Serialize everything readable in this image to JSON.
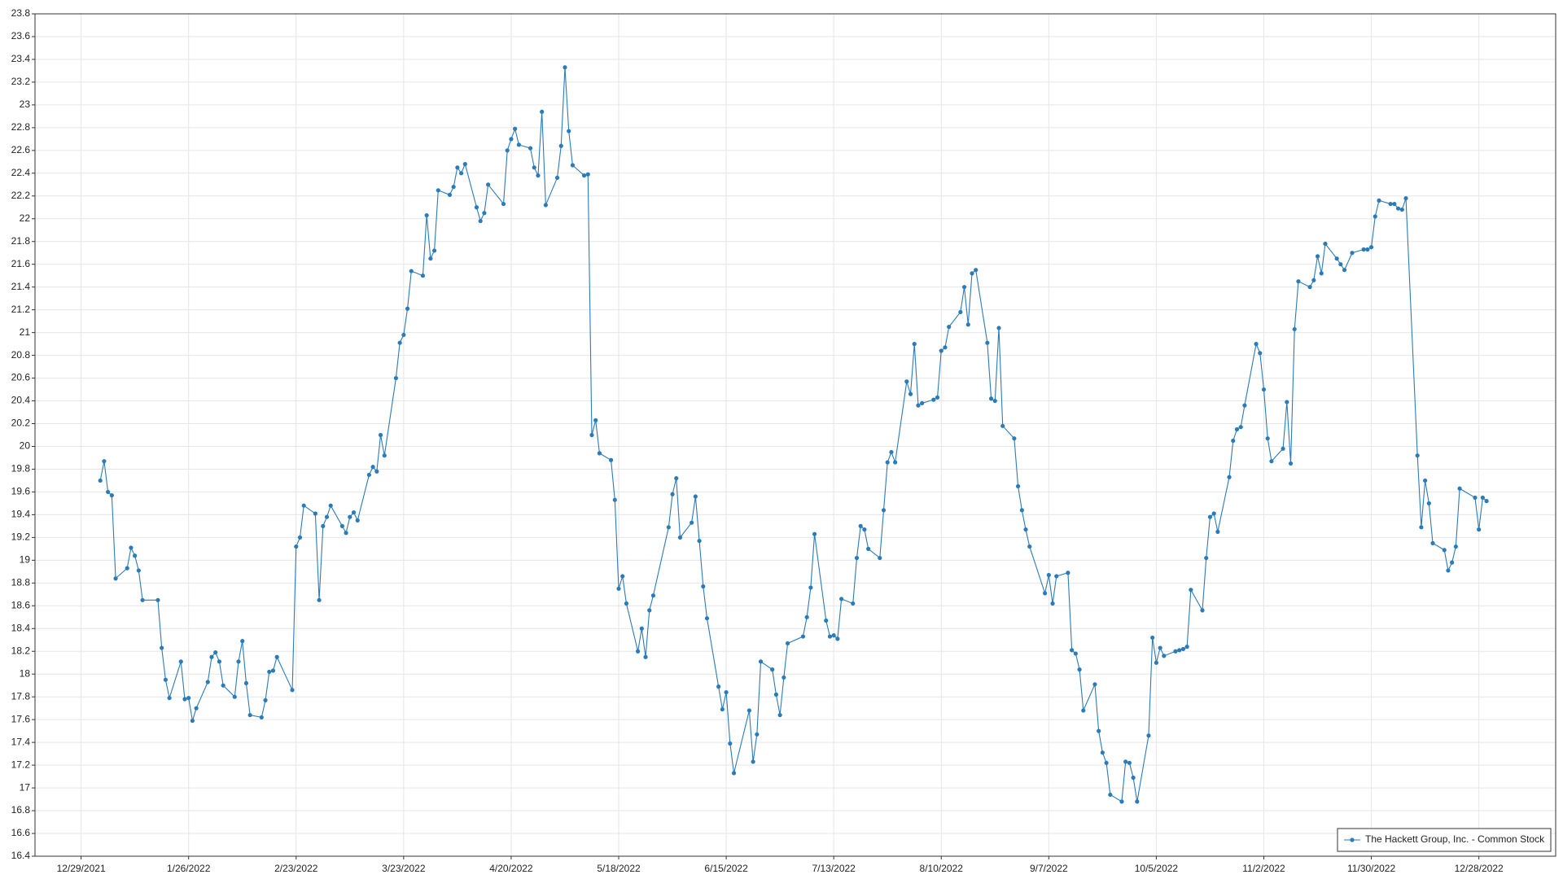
{
  "chart_data": {
    "type": "line",
    "xlim": [
      "12/17/2021",
      "1/17/2023"
    ],
    "xticks": [
      "12/29/2021",
      "1/26/2022",
      "2/23/2022",
      "3/23/2022",
      "4/20/2022",
      "5/18/2022",
      "6/15/2022",
      "7/13/2022",
      "8/10/2022",
      "9/7/2022",
      "10/5/2022",
      "11/2/2022",
      "11/30/2022",
      "12/28/2022"
    ],
    "ylim": [
      16.4,
      23.8
    ],
    "yticks": [
      16.4,
      16.6,
      16.8,
      17,
      17.2,
      17.4,
      17.6,
      17.8,
      18,
      18.2,
      18.4,
      18.6,
      18.8,
      19,
      19.2,
      19.4,
      19.6,
      19.8,
      20,
      20.2,
      20.4,
      20.6,
      20.8,
      21,
      21.2,
      21.4,
      21.6,
      21.8,
      22,
      22.2,
      22.4,
      22.6,
      22.8,
      23,
      23.2,
      23.4,
      23.6,
      23.8
    ],
    "grid": true,
    "legend": "lower right",
    "x": [
      "1/3/2022",
      "1/4/2022",
      "1/5/2022",
      "1/6/2022",
      "1/7/2022",
      "1/10/2022",
      "1/11/2022",
      "1/12/2022",
      "1/13/2022",
      "1/14/2022",
      "1/18/2022",
      "1/19/2022",
      "1/20/2022",
      "1/21/2022",
      "1/24/2022",
      "1/25/2022",
      "1/26/2022",
      "1/27/2022",
      "1/28/2022",
      "1/31/2022",
      "2/1/2022",
      "2/2/2022",
      "2/3/2022",
      "2/4/2022",
      "2/7/2022",
      "2/8/2022",
      "2/9/2022",
      "2/10/2022",
      "2/11/2022",
      "2/14/2022",
      "2/15/2022",
      "2/16/2022",
      "2/17/2022",
      "2/18/2022",
      "2/22/2022",
      "2/23/2022",
      "2/24/2022",
      "2/25/2022",
      "2/28/2022",
      "3/1/2022",
      "3/2/2022",
      "3/3/2022",
      "3/4/2022",
      "3/7/2022",
      "3/8/2022",
      "3/9/2022",
      "3/10/2022",
      "3/11/2022",
      "3/14/2022",
      "3/15/2022",
      "3/16/2022",
      "3/17/2022",
      "3/18/2022",
      "3/21/2022",
      "3/22/2022",
      "3/23/2022",
      "3/24/2022",
      "3/25/2022",
      "3/28/2022",
      "3/29/2022",
      "3/30/2022",
      "3/31/2022",
      "4/1/2022",
      "4/4/2022",
      "4/5/2022",
      "4/6/2022",
      "4/7/2022",
      "4/8/2022",
      "4/11/2022",
      "4/12/2022",
      "4/13/2022",
      "4/14/2022",
      "4/18/2022",
      "4/19/2022",
      "4/20/2022",
      "4/21/2022",
      "4/22/2022",
      "4/25/2022",
      "4/26/2022",
      "4/27/2022",
      "4/28/2022",
      "4/29/2022",
      "5/2/2022",
      "5/3/2022",
      "5/4/2022",
      "5/5/2022",
      "5/6/2022",
      "5/9/2022",
      "5/10/2022",
      "5/11/2022",
      "5/12/2022",
      "5/13/2022",
      "5/16/2022",
      "5/17/2022",
      "5/18/2022",
      "5/19/2022",
      "5/20/2022",
      "5/23/2022",
      "5/24/2022",
      "5/25/2022",
      "5/26/2022",
      "5/27/2022",
      "5/31/2022",
      "6/1/2022",
      "6/2/2022",
      "6/3/2022",
      "6/6/2022",
      "6/7/2022",
      "6/8/2022",
      "6/9/2022",
      "6/10/2022",
      "6/13/2022",
      "6/14/2022",
      "6/15/2022",
      "6/16/2022",
      "6/17/2022",
      "6/21/2022",
      "6/22/2022",
      "6/23/2022",
      "6/24/2022",
      "6/27/2022",
      "6/28/2022",
      "6/29/2022",
      "6/30/2022",
      "7/1/2022",
      "7/5/2022",
      "7/6/2022",
      "7/7/2022",
      "7/8/2022",
      "7/11/2022",
      "7/12/2022",
      "7/13/2022",
      "7/14/2022",
      "7/15/2022",
      "7/18/2022",
      "7/19/2022",
      "7/20/2022",
      "7/21/2022",
      "7/22/2022",
      "7/25/2022",
      "7/26/2022",
      "7/27/2022",
      "7/28/2022",
      "7/29/2022",
      "8/1/2022",
      "8/2/2022",
      "8/3/2022",
      "8/4/2022",
      "8/5/2022",
      "8/8/2022",
      "8/9/2022",
      "8/10/2022",
      "8/11/2022",
      "8/12/2022",
      "8/15/2022",
      "8/16/2022",
      "8/17/2022",
      "8/18/2022",
      "8/19/2022",
      "8/22/2022",
      "8/23/2022",
      "8/24/2022",
      "8/25/2022",
      "8/26/2022",
      "8/29/2022",
      "8/30/2022",
      "8/31/2022",
      "9/1/2022",
      "9/2/2022",
      "9/6/2022",
      "9/7/2022",
      "9/8/2022",
      "9/9/2022",
      "9/12/2022",
      "9/13/2022",
      "9/14/2022",
      "9/15/2022",
      "9/16/2022",
      "9/19/2022",
      "9/20/2022",
      "9/21/2022",
      "9/22/2022",
      "9/23/2022",
      "9/26/2022",
      "9/27/2022",
      "9/28/2022",
      "9/29/2022",
      "9/30/2022",
      "10/3/2022",
      "10/4/2022",
      "10/5/2022",
      "10/6/2022",
      "10/7/2022",
      "10/10/2022",
      "10/11/2022",
      "10/12/2022",
      "10/13/2022",
      "10/14/2022",
      "10/17/2022",
      "10/18/2022",
      "10/19/2022",
      "10/20/2022",
      "10/21/2022",
      "10/24/2022",
      "10/25/2022",
      "10/26/2022",
      "10/27/2022",
      "10/28/2022",
      "10/31/2022",
      "11/1/2022",
      "11/2/2022",
      "11/3/2022",
      "11/4/2022",
      "11/7/2022",
      "11/8/2022",
      "11/9/2022",
      "11/10/2022",
      "11/11/2022",
      "11/14/2022",
      "11/15/2022",
      "11/16/2022",
      "11/17/2022",
      "11/18/2022",
      "11/21/2022",
      "11/22/2022",
      "11/23/2022",
      "11/25/2022",
      "11/28/2022",
      "11/29/2022",
      "11/30/2022",
      "12/1/2022",
      "12/2/2022",
      "12/5/2022",
      "12/6/2022",
      "12/7/2022",
      "12/8/2022",
      "12/9/2022",
      "12/12/2022",
      "12/13/2022",
      "12/14/2022",
      "12/15/2022",
      "12/16/2022",
      "12/19/2022",
      "12/20/2022",
      "12/21/2022",
      "12/22/2022",
      "12/23/2022",
      "12/27/2022",
      "12/28/2022",
      "12/29/2022",
      "12/30/2022"
    ],
    "series": [
      {
        "name": "The Hackett Group, Inc. - Common Stock",
        "color": "#2b7bb9",
        "values": [
          19.7,
          19.87,
          19.6,
          19.57,
          18.84,
          18.93,
          19.11,
          19.04,
          18.91,
          18.65,
          18.65,
          18.23,
          17.95,
          17.79,
          18.11,
          17.78,
          17.79,
          17.59,
          17.7,
          17.93,
          18.15,
          18.19,
          18.11,
          17.9,
          17.8,
          18.11,
          18.29,
          17.92,
          17.64,
          17.62,
          17.77,
          18.02,
          18.03,
          18.15,
          17.86,
          19.12,
          19.2,
          19.48,
          19.41,
          18.65,
          19.3,
          19.38,
          19.48,
          19.3,
          19.24,
          19.38,
          19.42,
          19.35,
          19.75,
          19.82,
          19.78,
          20.1,
          19.92,
          20.6,
          20.91,
          20.98,
          21.21,
          21.54,
          21.5,
          22.03,
          21.65,
          21.72,
          22.25,
          22.21,
          22.28,
          22.45,
          22.4,
          22.48,
          22.1,
          21.98,
          22.05,
          22.3,
          22.13,
          22.6,
          22.7,
          22.79,
          22.65,
          22.62,
          22.45,
          22.38,
          22.94,
          22.12,
          22.36,
          22.64,
          23.33,
          22.77,
          22.47,
          22.38,
          22.39,
          20.1,
          20.23,
          19.94,
          19.88,
          19.53,
          18.75,
          18.86,
          18.62,
          18.2,
          18.4,
          18.15,
          18.56,
          18.69,
          19.29,
          19.58,
          19.72,
          19.2,
          19.33,
          19.56,
          19.17,
          18.77,
          18.49,
          17.89,
          17.69,
          17.84,
          17.39,
          17.13,
          17.68,
          17.23,
          17.47,
          18.11,
          18.04,
          17.82,
          17.64,
          17.97,
          18.27,
          18.33,
          18.5,
          18.76,
          19.23,
          18.47,
          18.33,
          18.34,
          18.31,
          18.66,
          18.62,
          19.02,
          19.3,
          19.27,
          19.1,
          19.02,
          19.44,
          19.86,
          19.95,
          19.86,
          20.57,
          20.46,
          20.9,
          20.36,
          20.38,
          20.41,
          20.43,
          20.84,
          20.87,
          21.05,
          21.18,
          21.4,
          21.07,
          21.52,
          21.55,
          20.91,
          20.42,
          20.4,
          21.04,
          20.18,
          20.07,
          19.65,
          19.44,
          19.27,
          19.12,
          18.71,
          18.87,
          18.62,
          18.86,
          18.89,
          18.21,
          18.18,
          18.04,
          17.68,
          17.91,
          17.5,
          17.31,
          17.22,
          16.94,
          16.88,
          17.23,
          17.22,
          17.09,
          16.88,
          17.46,
          18.32,
          18.1,
          18.23,
          18.16,
          18.2,
          18.21,
          18.22,
          18.24,
          18.74,
          18.56,
          19.02,
          19.38,
          19.41,
          19.25,
          19.73,
          20.05,
          20.15,
          20.17,
          20.36,
          20.9,
          20.82,
          20.5,
          20.07,
          19.87,
          19.98,
          20.39,
          19.85,
          21.03,
          21.45,
          21.4,
          21.46,
          21.67,
          21.52,
          21.78,
          21.65,
          21.6,
          21.55,
          21.7,
          21.73,
          21.73,
          21.75,
          22.02,
          22.16,
          22.13,
          22.13,
          22.09,
          22.08,
          22.18,
          19.92,
          19.29,
          19.7,
          19.5,
          19.15,
          19.09,
          18.91,
          18.98,
          19.12,
          19.63,
          19.55,
          19.27,
          19.55,
          19.52
        ]
      }
    ]
  }
}
